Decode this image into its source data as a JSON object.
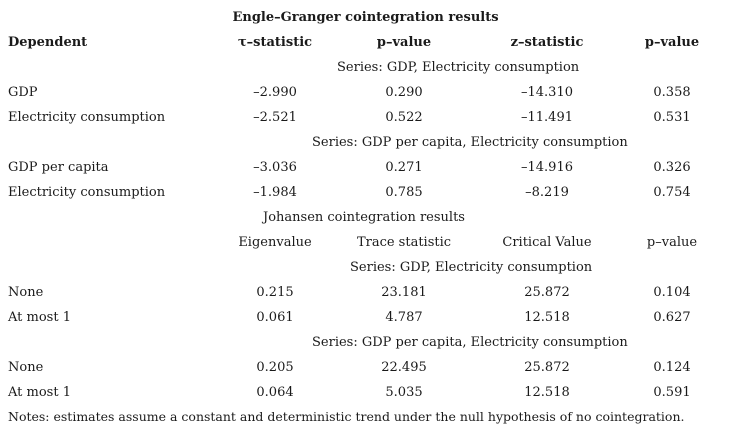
{
  "engle_granger": {
    "title": "Engle–Granger cointegration results",
    "headers": {
      "dependent": "Dependent",
      "tau": "τ–statistic",
      "p1": "p–value",
      "z": "z–statistic",
      "p2": "p–value"
    },
    "series1": {
      "label": "Series: GDP, Electricity consumption",
      "rows": [
        {
          "name": "GDP",
          "tau": "–2.990",
          "p1": "0.290",
          "z": "–14.310",
          "p2": "0.358"
        },
        {
          "name": "Electricity consumption",
          "tau": "–2.521",
          "p1": "0.522",
          "z": "–11.491",
          "p2": "0.531"
        }
      ]
    },
    "series2": {
      "label": "Series: GDP per capita, Electricity consumption",
      "rows": [
        {
          "name": "GDP per capita",
          "tau": "–3.036",
          "p1": "0.271",
          "z": "–14.916",
          "p2": "0.326"
        },
        {
          "name": "Electricity consumption",
          "tau": "–1.984",
          "p1": "0.785",
          "z": "–8.219",
          "p2": "0.754"
        }
      ]
    }
  },
  "johansen": {
    "title": "Johansen cointegration results",
    "headers": {
      "eigen": "Eigenvalue",
      "trace": "Trace statistic",
      "critical": "Critical Value",
      "p": "p–value"
    },
    "series1": {
      "label": "Series: GDP, Electricity consumption",
      "rows": [
        {
          "name": "None",
          "eigen": "0.215",
          "trace": "23.181",
          "critical": "25.872",
          "p": "0.104"
        },
        {
          "name": "At most 1",
          "eigen": "0.061",
          "trace": "4.787",
          "critical": "12.518",
          "p": "0.627"
        }
      ]
    },
    "series2": {
      "label": "Series: GDP per capita, Electricity consumption",
      "rows": [
        {
          "name": "None",
          "eigen": "0.205",
          "trace": "22.495",
          "critical": "25.872",
          "p": "0.124"
        },
        {
          "name": "At most 1",
          "eigen": "0.064",
          "trace": "5.035",
          "critical": "12.518",
          "p": "0.591"
        }
      ]
    }
  },
  "notes": "Notes: estimates assume a constant and deterministic trend under the null hypothesis of no cointegration."
}
